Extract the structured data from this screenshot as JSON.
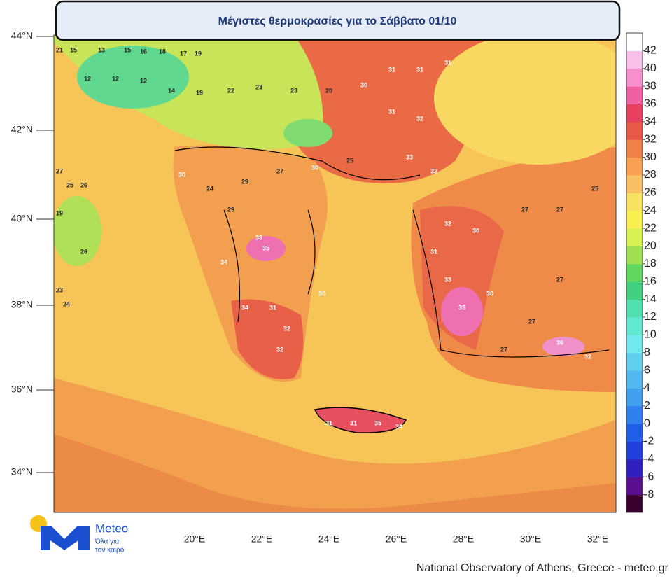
{
  "title": "Μέγιστες θερμοκρασίες για το Σάββατο 01/10",
  "map": {
    "lat_labels": [
      "44°N",
      "42°N",
      "40°N",
      "38°N",
      "36°N",
      "34°N"
    ],
    "lon_labels": [
      "20°E",
      "22°E",
      "24°E",
      "26°E",
      "28°E",
      "30°E",
      "32°E"
    ]
  },
  "colorbar": {
    "lim": [
      -10,
      44
    ],
    "ticks": [
      -8,
      -6,
      -4,
      -2,
      0,
      2,
      4,
      6,
      8,
      10,
      12,
      14,
      16,
      18,
      20,
      22,
      24,
      26,
      28,
      30,
      32,
      34,
      36,
      38,
      40,
      42
    ],
    "colors": [
      "#3a0030",
      "#5a1090",
      "#3020c0",
      "#2040e0",
      "#2060e8",
      "#3080f0",
      "#40a0f0",
      "#50b8f0",
      "#60d0f0",
      "#70e8f0",
      "#60e8d0",
      "#50e0b0",
      "#40d080",
      "#60d860",
      "#a0e050",
      "#d8f050",
      "#f8f050",
      "#f8e060",
      "#f8c060",
      "#f8a050",
      "#f08048",
      "#e85848",
      "#e84060",
      "#f060a0",
      "#f890d0",
      "#f8c0e8",
      "#ffffff"
    ]
  },
  "stations": {
    "values": [
      21,
      15,
      13,
      15,
      16,
      18,
      17,
      19,
      12,
      12,
      12,
      14,
      19,
      22,
      23,
      23,
      20,
      30,
      31,
      31,
      31,
      31,
      32,
      33,
      32,
      30,
      24,
      29,
      27,
      30,
      25,
      29,
      33,
      35,
      34,
      34,
      31,
      32,
      32,
      30,
      31,
      31,
      35,
      34,
      32,
      30,
      31,
      33,
      33,
      30,
      27,
      27,
      25,
      27,
      27,
      36,
      32,
      27,
      27,
      25,
      26,
      19,
      26,
      23,
      24
    ]
  },
  "logo": {
    "name": "Meteo",
    "tagline_1": "Όλα για",
    "tagline_2": "τον καιρό"
  },
  "footer": "National Observatory of Athens, Greece - meteo.gr"
}
